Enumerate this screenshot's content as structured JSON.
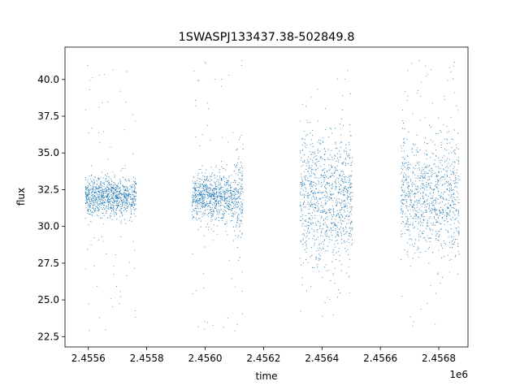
{
  "chart_data": {
    "type": "scatter",
    "title": "1SWASPJ133437.38-502849.8",
    "xlabel": "time",
    "ylabel": "flux",
    "x_offset_label": "1e6",
    "xlim": [
      2455520,
      2456900
    ],
    "ylim": [
      21.8,
      42.2
    ],
    "x_ticks": [
      2455600,
      2455800,
      2456000,
      2456200,
      2456400,
      2456600,
      2456800
    ],
    "x_tick_labels": [
      "2.4556",
      "2.4558",
      "2.4560",
      "2.4562",
      "2.4564",
      "2.4566",
      "2.4568"
    ],
    "y_ticks": [
      22.5,
      25.0,
      27.5,
      30.0,
      32.5,
      35.0,
      37.5,
      40.0
    ],
    "y_tick_labels": [
      "22.5",
      "25.0",
      "27.5",
      "30.0",
      "32.5",
      "35.0",
      "37.5",
      "40.0"
    ],
    "grid": false,
    "legend": "none",
    "marker_color": "#1f77b4",
    "series": [
      {
        "observing_seasons": [
          {
            "x_start": 2455590,
            "x_end": 2455765,
            "flux_median": 32.0,
            "flux_core_range": [
              30.8,
              33.4
            ],
            "flux_extreme_range": [
              22.9,
              41.0
            ]
          },
          {
            "x_start": 2455955,
            "x_end": 2456130,
            "flux_median": 32.0,
            "flux_core_range": [
              30.5,
              33.6
            ],
            "flux_extreme_range": [
              22.9,
              41.3
            ]
          },
          {
            "x_start": 2456325,
            "x_end": 2456505,
            "flux_median": 32.0,
            "flux_core_range": [
              28.0,
              36.5
            ],
            "flux_extreme_range": [
              22.9,
              41.3
            ]
          },
          {
            "x_start": 2456670,
            "x_end": 2456870,
            "flux_median": 32.0,
            "flux_core_range": [
              28.5,
              36.0
            ],
            "flux_extreme_range": [
              22.9,
              41.3
            ]
          }
        ]
      }
    ]
  }
}
